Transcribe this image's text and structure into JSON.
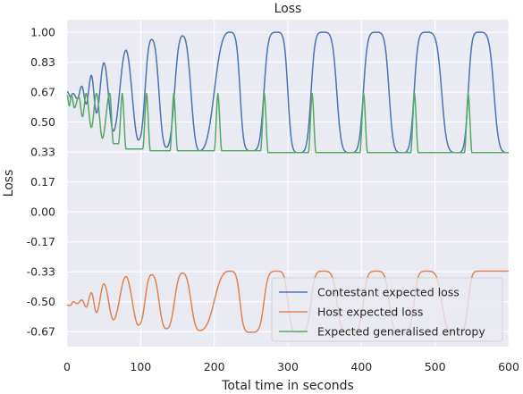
{
  "chart_data": {
    "type": "line",
    "title": "Loss",
    "xlabel": "Total time in seconds",
    "ylabel": "Loss",
    "xlim": [
      0,
      600
    ],
    "ylim": [
      -0.75,
      1.07
    ],
    "xticks": [
      0,
      100,
      200,
      300,
      400,
      500,
      600
    ],
    "yticks": [
      1.0,
      0.8333,
      0.6667,
      0.5,
      0.3333,
      0.1667,
      0.0,
      -0.1667,
      -0.3333,
      -0.5,
      -0.6667
    ],
    "ytick_labels": [
      "1.00",
      "0.83",
      "0.67",
      "0.50",
      "0.33",
      "0.17",
      "0.00",
      "-0.17",
      "-0.33",
      "-0.50",
      "-0.67"
    ],
    "grid": true,
    "legend_position": "lower right",
    "background": "#eaeaf2",
    "series": [
      {
        "name": "Contestant expected loss",
        "color": "#4c72b0",
        "peaks": [
          [
            0,
            0.67
          ],
          [
            8,
            0.66
          ],
          [
            20,
            0.7
          ],
          [
            33,
            0.76
          ],
          [
            50,
            0.83
          ],
          [
            80,
            0.9
          ],
          [
            115,
            0.96
          ],
          [
            157,
            0.98
          ],
          [
            220,
            1.0
          ],
          [
            285,
            1.0
          ],
          [
            348,
            1.0
          ],
          [
            420,
            1.0
          ],
          [
            488,
            1.0
          ],
          [
            560,
            1.0
          ]
        ],
        "troughs": [
          [
            5,
            0.64
          ],
          [
            14,
            0.63
          ],
          [
            26,
            0.6
          ],
          [
            40,
            0.55
          ],
          [
            63,
            0.45
          ],
          [
            97,
            0.4
          ],
          [
            135,
            0.36
          ],
          [
            180,
            0.34
          ],
          [
            250,
            0.34
          ],
          [
            315,
            0.33
          ],
          [
            385,
            0.33
          ],
          [
            455,
            0.33
          ],
          [
            530,
            0.33
          ],
          [
            600,
            0.33
          ]
        ]
      },
      {
        "name": "Host expected loss",
        "color": "#dd8452",
        "peaks": [
          [
            8,
            -0.5
          ],
          [
            20,
            -0.49
          ],
          [
            33,
            -0.45
          ],
          [
            50,
            -0.4
          ],
          [
            80,
            -0.36
          ],
          [
            115,
            -0.35
          ],
          [
            157,
            -0.34
          ],
          [
            220,
            -0.33
          ],
          [
            285,
            -0.33
          ],
          [
            348,
            -0.33
          ],
          [
            420,
            -0.33
          ],
          [
            488,
            -0.33
          ],
          [
            560,
            -0.33
          ],
          [
            600,
            -0.33
          ]
        ],
        "troughs": [
          [
            0,
            -0.52
          ],
          [
            5,
            -0.52
          ],
          [
            14,
            -0.51
          ],
          [
            26,
            -0.53
          ],
          [
            40,
            -0.56
          ],
          [
            63,
            -0.6
          ],
          [
            97,
            -0.63
          ],
          [
            135,
            -0.65
          ],
          [
            180,
            -0.66
          ],
          [
            250,
            -0.67
          ],
          [
            315,
            -0.67
          ],
          [
            385,
            -0.67
          ],
          [
            455,
            -0.67
          ],
          [
            530,
            -0.67
          ]
        ]
      },
      {
        "name": "Expected generalised entropy",
        "color": "#55a868",
        "spikes": [
          [
            0,
            0.65
          ],
          [
            6,
            0.65
          ],
          [
            16,
            0.64
          ],
          [
            26,
            0.66
          ],
          [
            40,
            0.66
          ],
          [
            58,
            0.66
          ],
          [
            75,
            0.66
          ],
          [
            108,
            0.66
          ],
          [
            145,
            0.66
          ],
          [
            205,
            0.66
          ],
          [
            268,
            0.66
          ],
          [
            333,
            0.66
          ],
          [
            403,
            0.66
          ],
          [
            472,
            0.66
          ],
          [
            545,
            0.66
          ]
        ],
        "dips": [
          [
            3,
            0.59
          ],
          [
            10,
            0.58
          ],
          [
            21,
            0.53
          ],
          [
            33,
            0.47
          ],
          [
            48,
            0.41
          ],
          [
            63,
            0.38
          ],
          [
            90,
            0.35
          ],
          [
            125,
            0.34
          ],
          [
            175,
            0.34
          ],
          [
            240,
            0.34
          ],
          [
            300,
            0.33
          ],
          [
            370,
            0.33
          ],
          [
            440,
            0.33
          ],
          [
            510,
            0.33
          ],
          [
            580,
            0.33
          ]
        ]
      }
    ]
  }
}
